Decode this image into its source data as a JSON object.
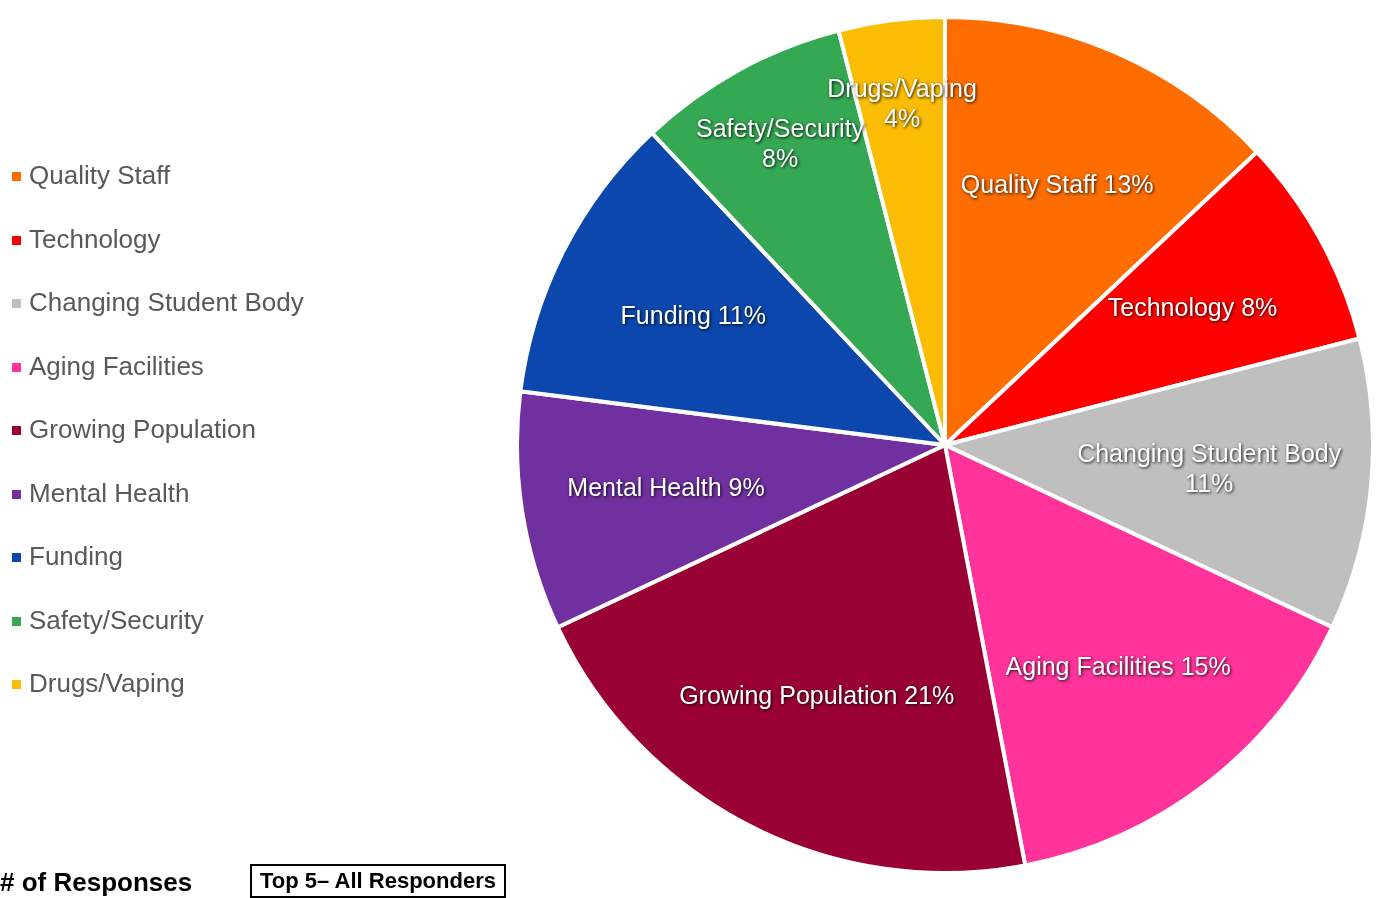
{
  "chart_data": {
    "type": "pie",
    "categories": [
      "Quality Staff",
      "Technology",
      "Changing Student Body",
      "Aging Facilities",
      "Growing Population",
      "Mental Health",
      "Funding",
      "Safety/Security",
      "Drugs/Vaping"
    ],
    "values": [
      13,
      8,
      11,
      15,
      21,
      9,
      11,
      8,
      4
    ],
    "colors": [
      "#ff6d00",
      "#ff0000",
      "#bfbfbf",
      "#ff3399",
      "#990033",
      "#7030a0",
      "#0b47ac",
      "#34a853",
      "#fbbc04"
    ],
    "value_labels": [
      "13%",
      "8%",
      "11%",
      "15%",
      "21%",
      "9%",
      "11%",
      "8%",
      "4%"
    ],
    "legend": "left",
    "annotations": [
      "# of Responses",
      "Top 5– All Responders"
    ]
  }
}
